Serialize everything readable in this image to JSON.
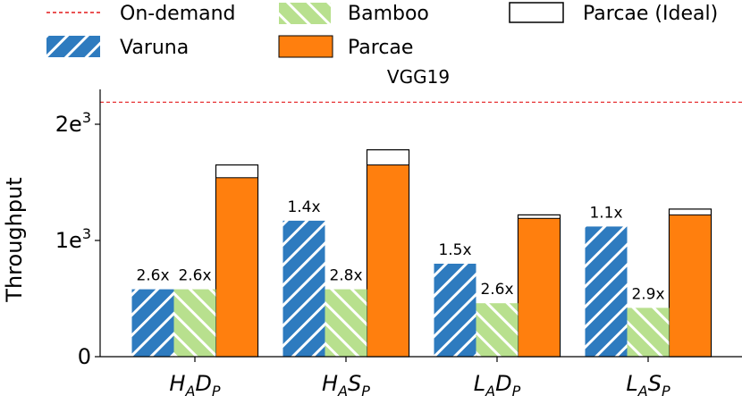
{
  "chart_data": {
    "type": "bar",
    "title": "VGG19",
    "ylabel": "Throughput",
    "xlabel": "",
    "ylim": [
      0,
      2300
    ],
    "yticks": [
      {
        "value": 0,
        "base": "0",
        "exp": ""
      },
      {
        "value": 1000,
        "base": "1e",
        "exp": "3"
      },
      {
        "value": 2000,
        "base": "2e",
        "exp": "3"
      }
    ],
    "categories": [
      {
        "id": "HADP",
        "main1": "H",
        "sub1": "A",
        "main2": "D",
        "sub2": "P"
      },
      {
        "id": "HASP",
        "main1": "H",
        "sub1": "A",
        "main2": "S",
        "sub2": "P"
      },
      {
        "id": "LADP",
        "main1": "L",
        "sub1": "A",
        "main2": "D",
        "sub2": "P"
      },
      {
        "id": "LASP",
        "main1": "L",
        "sub1": "A",
        "main2": "S",
        "sub2": "P"
      }
    ],
    "on_demand": 2190,
    "series": [
      {
        "name": "Varuna",
        "values": [
          580,
          1170,
          800,
          1120
        ],
        "labels": [
          "2.6x",
          "1.4x",
          "1.5x",
          "1.1x"
        ]
      },
      {
        "name": "Bamboo",
        "values": [
          580,
          580,
          460,
          420
        ],
        "labels": [
          "2.6x",
          "2.8x",
          "2.6x",
          "2.9x"
        ]
      },
      {
        "name": "Parcae",
        "values": [
          1540,
          1650,
          1190,
          1220
        ],
        "labels": [
          "",
          "",
          "",
          ""
        ]
      },
      {
        "name": "Parcae (Ideal)",
        "values": [
          1650,
          1780,
          1220,
          1270
        ],
        "labels": [
          "",
          "",
          "",
          ""
        ]
      }
    ],
    "legend": [
      {
        "name": "On-demand",
        "key": "ondemand"
      },
      {
        "name": "Bamboo",
        "key": "bamboo"
      },
      {
        "name": "Parcae (Ideal)",
        "key": "ideal"
      },
      {
        "name": "Varuna",
        "key": "varuna"
      },
      {
        "name": "Parcae",
        "key": "parcae"
      }
    ],
    "colors": {
      "varuna": "#2e7bbf",
      "bamboo": "#b8e08e",
      "parcae": "#ff7f0e",
      "ideal": "#ffffff",
      "ondemand": "#e41a1c"
    }
  }
}
